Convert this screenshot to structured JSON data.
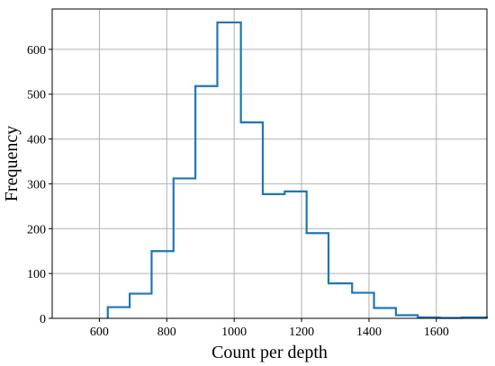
{
  "chart_data": {
    "type": "histogram",
    "title": "",
    "xlabel": "Count per depth",
    "ylabel": "Frequency",
    "xlim": [
      460,
      1750
    ],
    "ylim": [
      0,
      690
    ],
    "xticks": [
      600,
      800,
      1000,
      1200,
      1400,
      1600
    ],
    "yticks": [
      0,
      100,
      200,
      300,
      400,
      500,
      600
    ],
    "grid": true,
    "line_color": "#1f77b4",
    "bin_edges": [
      625,
      690,
      755,
      820,
      885,
      950,
      1020,
      1085,
      1150,
      1215,
      1280,
      1350,
      1415,
      1480,
      1545,
      1610,
      1675,
      1750
    ],
    "values": [
      25,
      55,
      150,
      312,
      518,
      660,
      437,
      277,
      283,
      190,
      78,
      57,
      23,
      7,
      2,
      1,
      2
    ]
  }
}
